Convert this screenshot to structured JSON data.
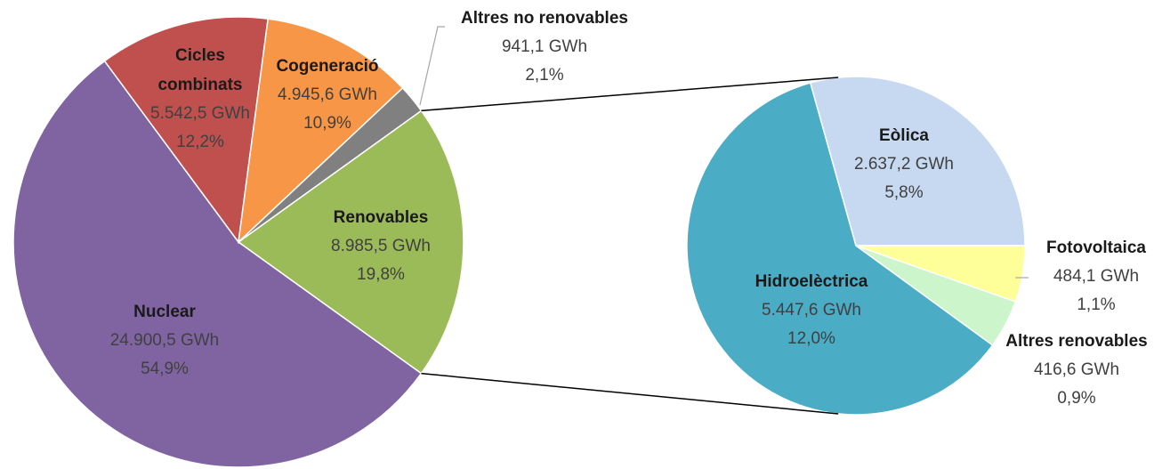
{
  "chart_data": {
    "type": "pie-of-pie",
    "main": {
      "categories": [
        "Renovables",
        "Nuclear",
        "Cicles combinats",
        "Cogeneració",
        "Altres no renovables"
      ],
      "values": [
        8985.5,
        24900.5,
        5542.5,
        4945.6,
        941.1
      ],
      "value_labels": [
        "8.985,5 GWh",
        "24.900,5 GWh",
        "5.542,5 GWh",
        "4.945,6 GWh",
        "941,1 GWh"
      ],
      "percents": [
        19.8,
        54.9,
        12.2,
        10.9,
        2.1
      ],
      "percent_labels": [
        "19,8%",
        "54,9%",
        "12,2%",
        "10,9%",
        "2,1%"
      ],
      "colors": [
        "#9bbb59",
        "#8064a2",
        "#c0504d",
        "#f79646",
        "#808080"
      ]
    },
    "secondary": {
      "categories": [
        "Eòlica",
        "Fotovoltaica",
        "Altres renovables",
        "Hidroelèctrica"
      ],
      "values": [
        2637.2,
        484.1,
        416.6,
        5447.6
      ],
      "value_labels": [
        "2.637,2 GWh",
        "484,1 GWh",
        "416,6 GWh",
        "5.447,6 GWh"
      ],
      "percents": [
        5.8,
        1.1,
        0.9,
        12.0
      ],
      "percent_labels": [
        "5,8%",
        "1,1%",
        "0,9%",
        "12,0%"
      ],
      "colors": [
        "#c6d9f1",
        "#ffff99",
        "#ccf5cc",
        "#4bacc6"
      ]
    }
  }
}
